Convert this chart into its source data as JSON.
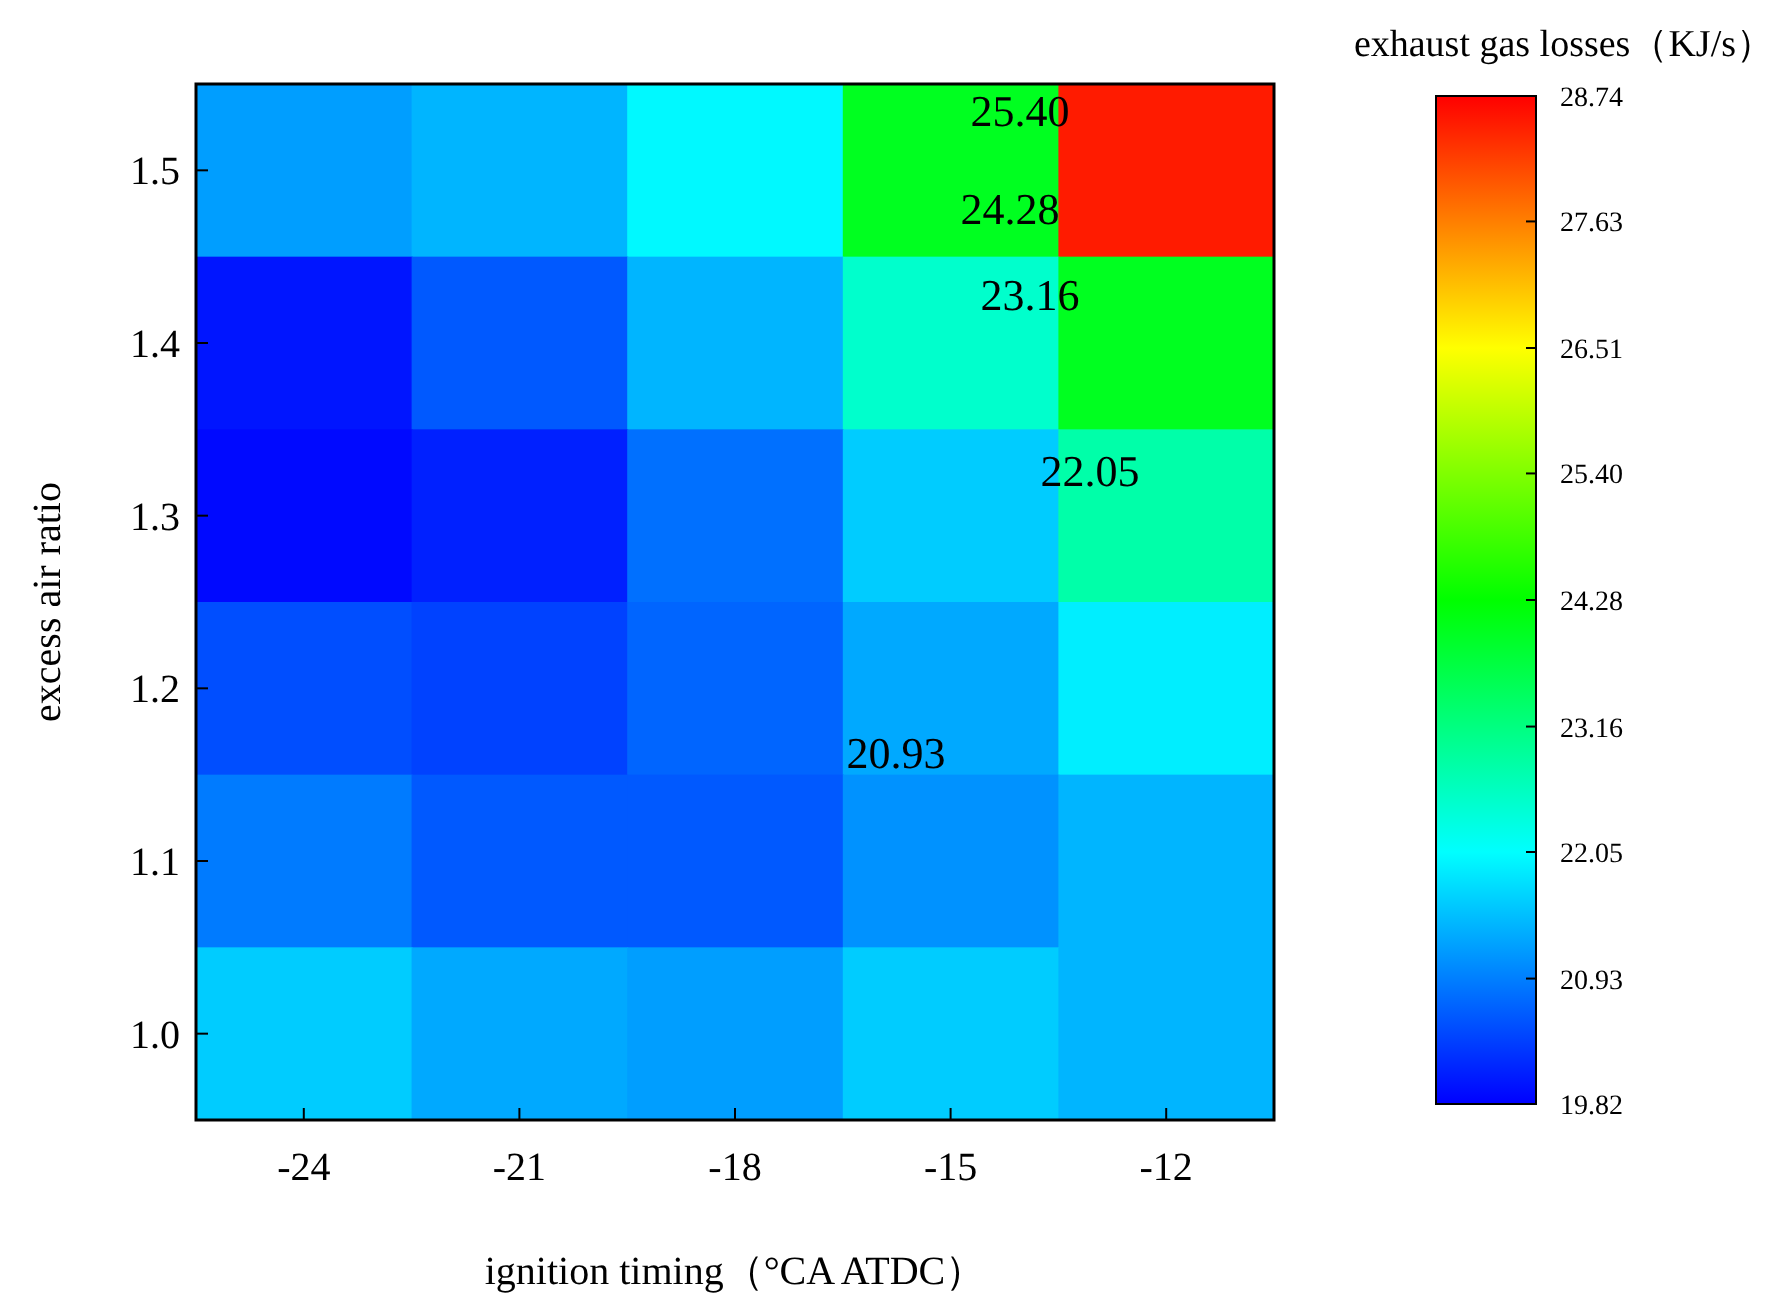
{
  "chart_data": {
    "type": "heatmap",
    "xlabel": "ignition timing（°CA ATDC）",
    "ylabel": "excess air ratio",
    "clabel": "exhaust gas losses（KJ/s）",
    "categories": [
      "-24",
      "-21",
      "-18",
      "-15",
      "-12"
    ],
    "y_categories": [
      "1.5",
      "1.4",
      "1.3",
      "1.2",
      "1.1",
      "1.0"
    ],
    "cells": [
      [
        21.2,
        21.4,
        22.0,
        24.0,
        28.5
      ],
      [
        20.0,
        20.6,
        21.4,
        22.5,
        24.0
      ],
      [
        19.9,
        20.1,
        20.8,
        21.6,
        22.8
      ],
      [
        20.5,
        20.4,
        20.7,
        21.3,
        21.9
      ],
      [
        20.9,
        20.6,
        20.6,
        21.1,
        21.4
      ],
      [
        21.6,
        21.3,
        21.2,
        21.6,
        21.4
      ]
    ],
    "clim": [
      19.82,
      28.74
    ],
    "cticks": [
      {
        "value": 19.82,
        "label": "19.82"
      },
      {
        "value": 20.93,
        "label": "20.93"
      },
      {
        "value": 22.05,
        "label": "22.05"
      },
      {
        "value": 23.16,
        "label": "23.16"
      },
      {
        "value": 24.28,
        "label": "24.28"
      },
      {
        "value": 25.4,
        "label": "25.40"
      },
      {
        "value": 26.51,
        "label": "26.51"
      },
      {
        "value": 27.63,
        "label": "27.63"
      },
      {
        "value": 28.74,
        "label": "28.74"
      }
    ],
    "annotations": [
      "25.40",
      "24.28",
      "23.16",
      "22.05",
      "20.93"
    ]
  }
}
